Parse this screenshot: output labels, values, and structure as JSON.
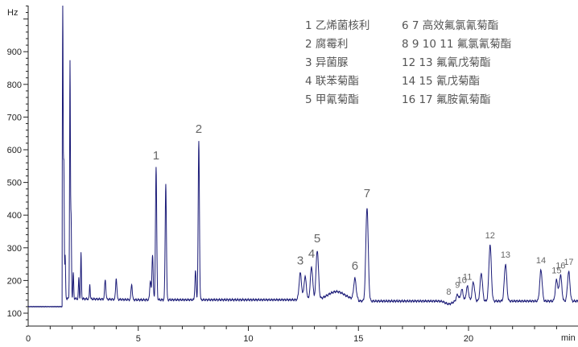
{
  "chart_data": {
    "type": "line",
    "title": "",
    "xlabel": "min",
    "ylabel": "Hz",
    "xlim": [
      0,
      25
    ],
    "ylim": [
      60,
      1050
    ],
    "x_ticks": [
      0,
      5,
      10,
      15,
      20
    ],
    "y_ticks": [
      100,
      200,
      300,
      400,
      500,
      600,
      700,
      800,
      900
    ],
    "grid": false,
    "legend_position": "top-right",
    "series_color": "#1c1c78",
    "baseline_before_injection": 120,
    "injection_time": 1.55,
    "baseline": 140,
    "peaks": [
      {
        "t": 1.57,
        "height": 1040
      },
      {
        "t": 1.62,
        "height": 550
      },
      {
        "t": 1.68,
        "height": 270
      },
      {
        "t": 1.9,
        "height": 865
      },
      {
        "t": 1.95,
        "height": 385
      },
      {
        "t": 2.05,
        "height": 220
      },
      {
        "t": 2.3,
        "height": 205
      },
      {
        "t": 2.4,
        "height": 280
      },
      {
        "t": 2.8,
        "height": 185
      },
      {
        "t": 3.5,
        "height": 200
      },
      {
        "t": 4.0,
        "height": 205
      },
      {
        "t": 4.7,
        "height": 188
      },
      {
        "t": 5.55,
        "height": 200
      },
      {
        "t": 5.65,
        "height": 280
      },
      {
        "t": 5.81,
        "height": 545
      },
      {
        "t": 6.25,
        "height": 495
      },
      {
        "t": 7.6,
        "height": 228
      },
      {
        "t": 7.75,
        "height": 625
      },
      {
        "t": 12.36,
        "height": 222
      },
      {
        "t": 12.58,
        "height": 210
      },
      {
        "t": 12.87,
        "height": 240
      },
      {
        "t": 13.13,
        "height": 290
      },
      {
        "t": 14.84,
        "height": 203
      },
      {
        "t": 15.39,
        "height": 427
      },
      {
        "t": 19.5,
        "height": 160
      },
      {
        "t": 19.7,
        "height": 175
      },
      {
        "t": 19.95,
        "height": 185
      },
      {
        "t": 20.22,
        "height": 198
      },
      {
        "t": 20.58,
        "height": 225
      },
      {
        "t": 20.98,
        "height": 312
      },
      {
        "t": 21.68,
        "height": 253
      },
      {
        "t": 23.29,
        "height": 235
      },
      {
        "t": 24.0,
        "height": 205
      },
      {
        "t": 24.18,
        "height": 220
      },
      {
        "t": 24.55,
        "height": 230
      }
    ],
    "peak_labels": [
      {
        "label": "1",
        "t": 5.81,
        "value": 541
      },
      {
        "label": "2",
        "t": 7.75,
        "value": 622
      },
      {
        "label": "3",
        "t": 12.36,
        "value": 220
      },
      {
        "label": "4",
        "t": 12.87,
        "value": 240
      },
      {
        "label": "5",
        "t": 13.13,
        "value": 287
      },
      {
        "label": "6",
        "t": 14.84,
        "value": 203
      },
      {
        "label": "7",
        "t": 15.39,
        "value": 425
      },
      {
        "label": "8",
        "t": 19.1,
        "value": 140
      },
      {
        "label": "9",
        "t": 19.5,
        "value": 160
      },
      {
        "label": "10",
        "t": 19.7,
        "value": 175
      },
      {
        "label": "11",
        "t": 19.95,
        "value": 185
      },
      {
        "label": "12",
        "t": 20.98,
        "value": 312
      },
      {
        "label": "13",
        "t": 21.68,
        "value": 253
      },
      {
        "label": "14",
        "t": 23.29,
        "value": 235
      },
      {
        "label": "15",
        "t": 24.0,
        "value": 205
      },
      {
        "label": "16",
        "t": 24.18,
        "value": 220
      },
      {
        "label": "17",
        "t": 24.55,
        "value": 230
      }
    ],
    "legend": [
      [
        "1 乙烯菌核利",
        "6 7 高效氟氯氰菊酯"
      ],
      [
        "2 腐霉利",
        "8 9 10 11 氟氯氰菊酯"
      ],
      [
        "3 异菌脲",
        "12 13 氟氰戊菊酯"
      ],
      [
        "4 联苯菊酯",
        "14 15 氰戊菊酯"
      ],
      [
        "5 甲氰菊酯",
        "16 17 氟胺氰菊酯"
      ]
    ]
  }
}
